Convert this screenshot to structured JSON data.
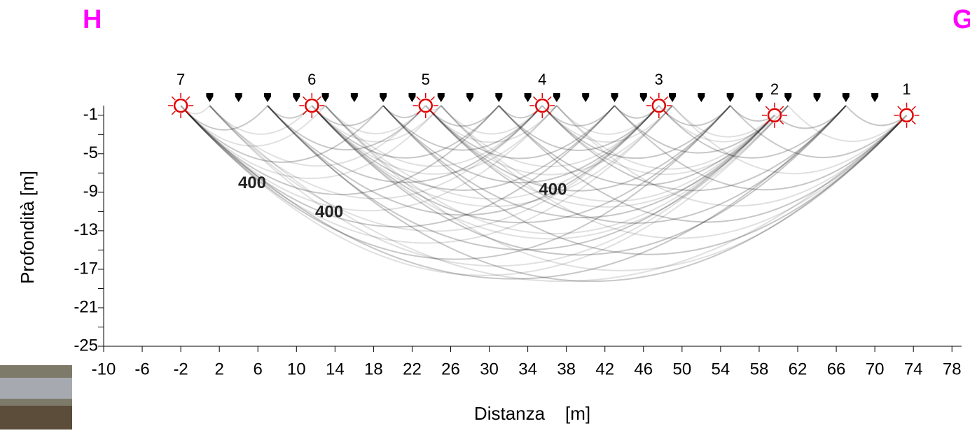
{
  "chart_data": {
    "type": "ray",
    "corner_labels": [
      "H",
      "G"
    ],
    "xlabel": "Distanza    [m]",
    "ylabel": "Profondità [m]",
    "xlim": [
      -10,
      79
    ],
    "ylim": [
      -25,
      0
    ],
    "xticks": [
      -10,
      -6,
      -2,
      2,
      6,
      10,
      14,
      18,
      22,
      26,
      30,
      34,
      38,
      42,
      46,
      50,
      54,
      58,
      62,
      66,
      70,
      74,
      78
    ],
    "yticks": [
      -1,
      -5,
      -9,
      -13,
      -17,
      -21,
      -25
    ],
    "shots": {
      "labels": [
        "1",
        "2",
        "3",
        "4",
        "5",
        "6",
        "7"
      ],
      "x": [
        73.3,
        59.6,
        47.6,
        35.5,
        23.4,
        11.6,
        -2
      ],
      "y": [
        -1,
        -1,
        0,
        0,
        0,
        0,
        0
      ],
      "color": "#e00000"
    },
    "geophones": {
      "x": [
        1,
        4,
        7,
        10,
        13,
        16,
        19,
        22,
        25,
        28,
        31,
        34,
        37,
        40,
        43,
        46,
        49,
        52,
        55,
        58,
        61,
        64,
        67,
        70
      ]
    },
    "contours": [
      {
        "label": "400",
        "x": 5.4,
        "y": -8.0
      },
      {
        "label": "400",
        "x": 36.6,
        "y": -8.7
      },
      {
        "label": "400",
        "x": 13.4,
        "y": -11.0
      }
    ]
  }
}
